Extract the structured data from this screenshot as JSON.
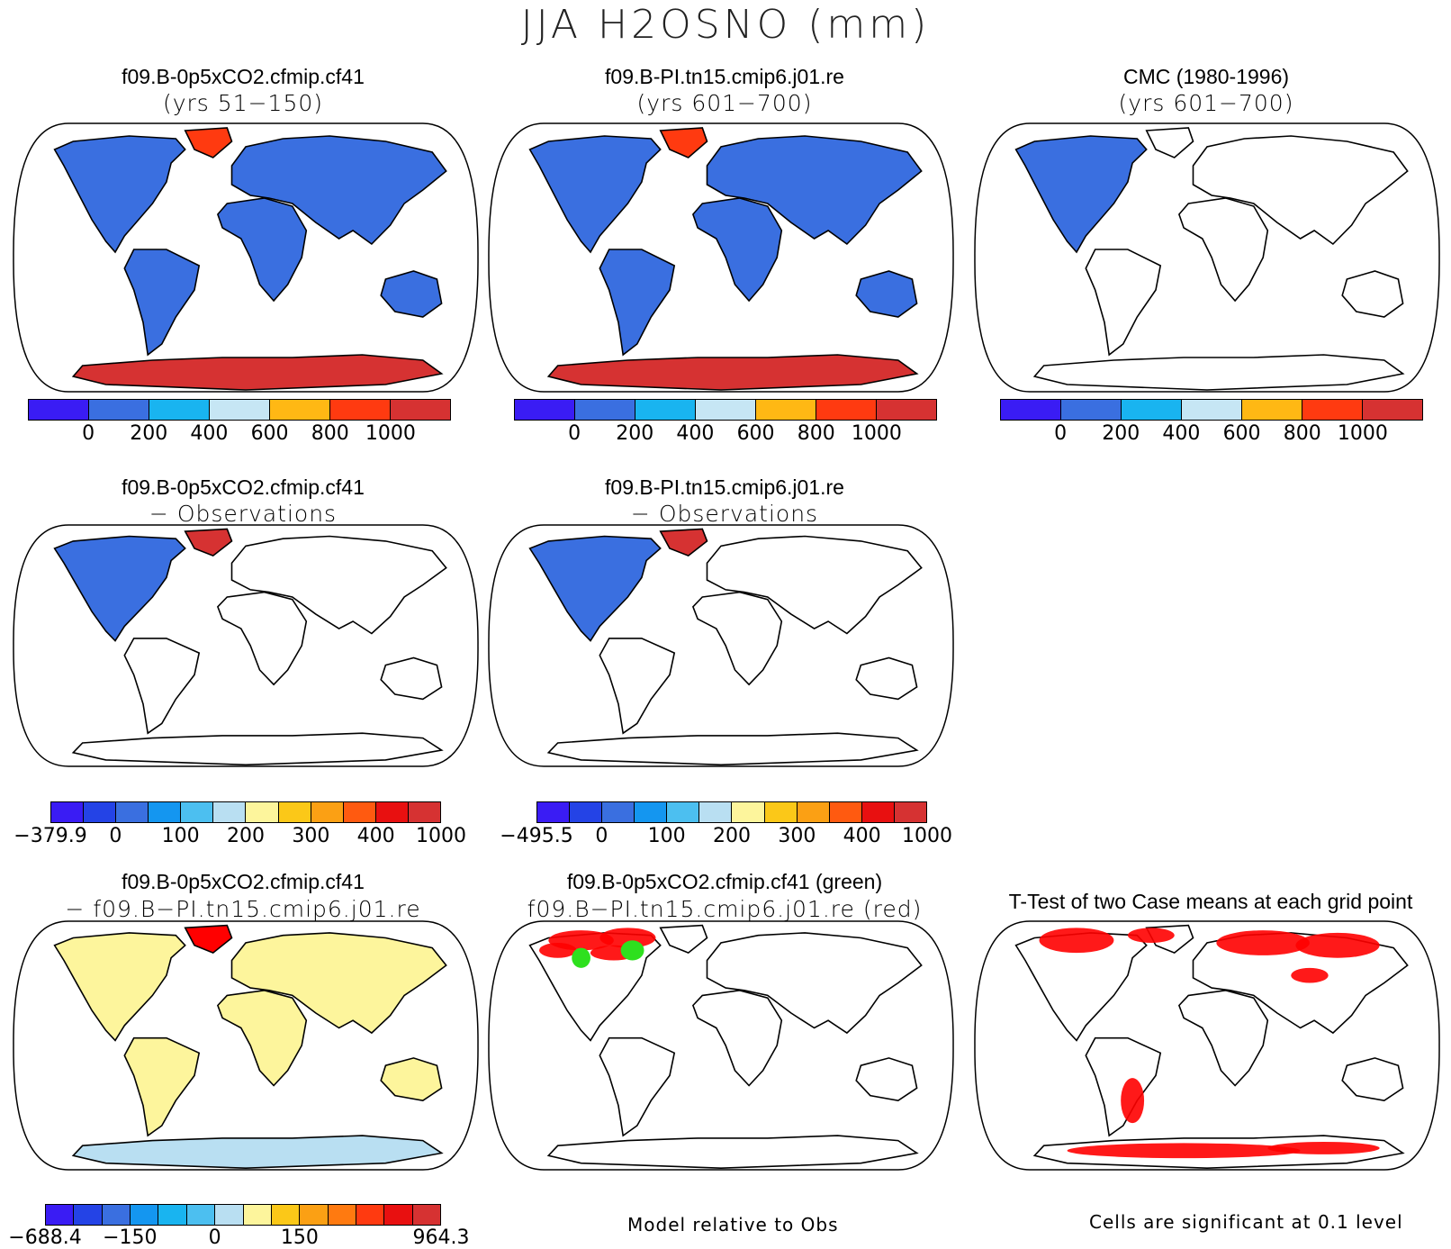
{
  "title": "JJA H2OSNO (mm)",
  "colors": {
    "ocean": "#ffffff",
    "coast": "#000000",
    "snow_low": "#3a6fe0",
    "snow_high": "#d63232",
    "greenland": "#ff3a10",
    "diff_pos": "#fdf59c",
    "antarctic_diff": "#b9dff2",
    "sig_red": "#ff0000",
    "sig_green": "#2ee01e"
  },
  "panels": [
    {
      "id": "p1",
      "line1": "f09.B-0p5xCO2.cfmip.cf41",
      "line2": "(yrs 51−150)",
      "map": "model",
      "colorbar": "abs"
    },
    {
      "id": "p2",
      "line1": "f09.B-PI.tn15.cmip6.j01.re",
      "line2": "(yrs 601−700)",
      "map": "model",
      "colorbar": "abs"
    },
    {
      "id": "p3",
      "line1": "CMC (1980-1996)",
      "line2": "(yrs 601−700)",
      "map": "obs",
      "colorbar": "abs"
    },
    {
      "id": "p4",
      "line1": "f09.B-0p5xCO2.cfmip.cf41",
      "line2": "− Observations",
      "map": "bias",
      "colorbar": "bias1"
    },
    {
      "id": "p5",
      "line1": "f09.B-PI.tn15.cmip6.j01.re",
      "line2": "− Observations",
      "map": "bias",
      "colorbar": "bias2"
    },
    {
      "id": "p6",
      "line1": "f09.B-0p5xCO2.cfmip.cf41",
      "line2": "− f09.B−PI.tn15.cmip6.j01.re",
      "map": "diff",
      "colorbar": "diff"
    },
    {
      "id": "p7",
      "line1": "f09.B-0p5xCO2.cfmip.cf41 (green)",
      "line2": "f09.B−PI.tn15.cmip6.j01.re (red)",
      "map": "rel",
      "colorbar": null
    },
    {
      "id": "p8",
      "line1": "T-Test of two Case means at each grid point",
      "line2": "",
      "map": "ttest",
      "colorbar": null
    }
  ],
  "colorbars": {
    "abs": {
      "colors": [
        "#3a1cf4",
        "#3a6fe0",
        "#19b4f0",
        "#c6e6f4",
        "#ffb814",
        "#ff3a10",
        "#d63232"
      ],
      "labels": [
        "0",
        "200",
        "400",
        "600",
        "800",
        "1000"
      ]
    },
    "bias1": {
      "colors": [
        "#3a1cf4",
        "#2443e6",
        "#3a6fe0",
        "#1496f0",
        "#4cbff0",
        "#b9dff2",
        "#fdf59c",
        "#fbc818",
        "#fba014",
        "#ff5a10",
        "#e81010",
        "#d63232"
      ],
      "labels": [
        "−379.9",
        "0",
        "100",
        "200",
        "300",
        "400",
        "1000"
      ]
    },
    "bias2": {
      "colors": [
        "#3a1cf4",
        "#2443e6",
        "#3a6fe0",
        "#1496f0",
        "#4cbff0",
        "#b9dff2",
        "#fdf59c",
        "#fbc818",
        "#fba014",
        "#ff5a10",
        "#e81010",
        "#d63232"
      ],
      "labels": [
        "−495.5",
        "0",
        "100",
        "200",
        "300",
        "400",
        "1000"
      ]
    },
    "diff": {
      "colors": [
        "#3a1cf4",
        "#2443e6",
        "#3a6fe0",
        "#1496f0",
        "#19b4f0",
        "#4cbff0",
        "#b9dff2",
        "#fdf59c",
        "#fbc818",
        "#fba014",
        "#ff7a10",
        "#ff3a10",
        "#e81010",
        "#d63232"
      ],
      "labels": [
        "−688.4",
        "−150",
        "0",
        "150",
        "964.3"
      ]
    }
  },
  "notes": {
    "relative": "Model relative to Obs",
    "significance": "Cells are significant at 0.1 level"
  }
}
